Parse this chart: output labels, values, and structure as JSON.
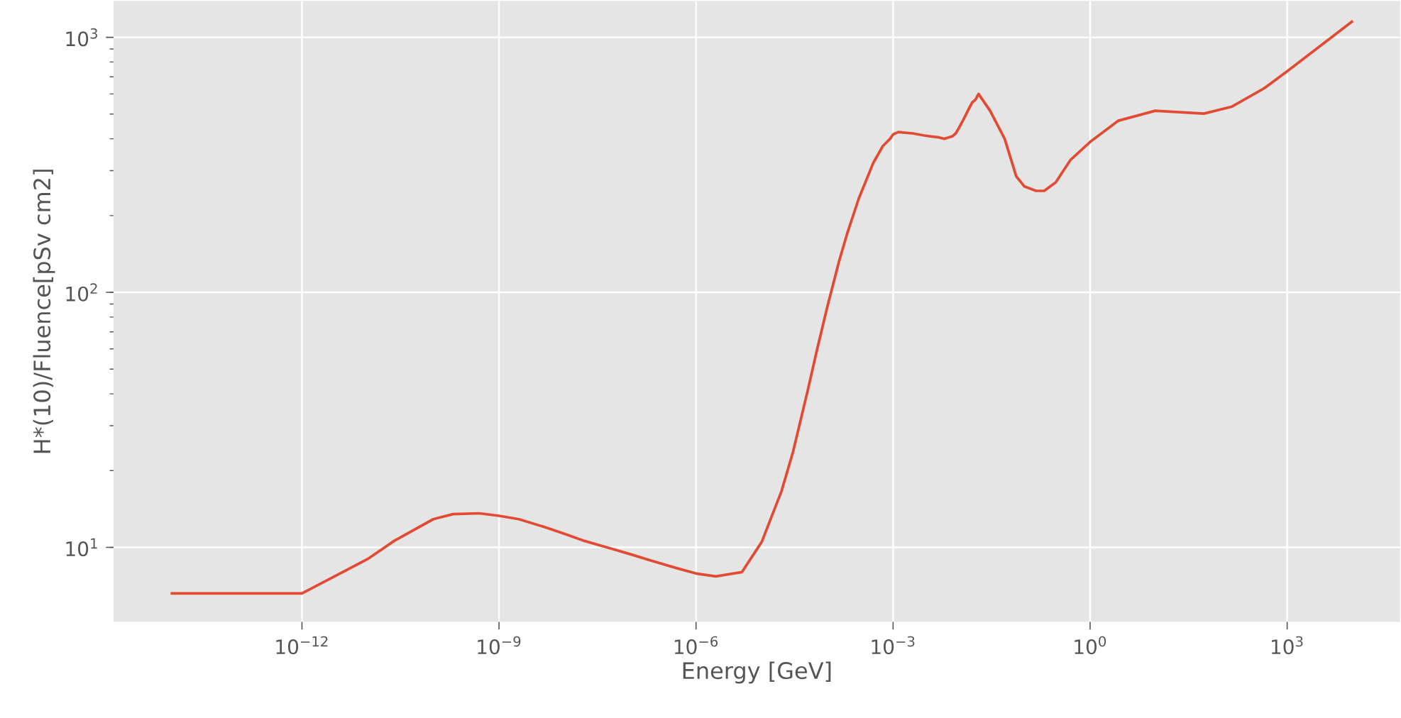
{
  "chart_data": {
    "type": "line",
    "xlabel": "Energy [GeV]",
    "ylabel": "H*(10)/Fluence[pSv cm2]",
    "log": "xy",
    "grid": true,
    "marker": "none",
    "line_style": "solid",
    "xlim": [
      1.35e-15,
      52500.0
    ],
    "ylim": [
      5.1,
      1390
    ],
    "xticks": [
      {
        "value": 1e-12,
        "label": "10$^{−12}$"
      },
      {
        "value": 1e-09,
        "label": "10$^{−9}$"
      },
      {
        "value": 1e-06,
        "label": "10$^{−6}$"
      },
      {
        "value": 0.001,
        "label": "10$^{−3}$"
      },
      {
        "value": 1,
        "label": "10$^{0}$"
      },
      {
        "value": 1000,
        "label": "10$^{3}$"
      }
    ],
    "yticks": [
      {
        "value": 10,
        "label": "10$^{1}$"
      },
      {
        "value": 100,
        "label": "10$^{2}$"
      },
      {
        "value": 1000,
        "label": "10$^{3}$"
      }
    ],
    "series": [
      {
        "color": "#e24a33",
        "x": [
          1e-14,
          1e-12,
          1e-11,
          2.53e-11,
          1e-10,
          2e-10,
          5e-10,
          1e-09,
          2e-09,
          5e-09,
          1e-08,
          2e-08,
          5e-08,
          1e-07,
          2e-07,
          5e-07,
          1e-06,
          2e-06,
          5e-06,
          1e-05,
          2e-05,
          3e-05,
          5e-05,
          7e-05,
          0.0001,
          0.00015,
          0.0002,
          0.0003,
          0.0005,
          0.0007,
          0.0009,
          0.001,
          0.0012,
          0.002,
          0.003,
          0.004,
          0.005,
          0.006,
          0.007,
          0.008,
          0.009,
          0.01,
          0.012,
          0.014,
          0.016,
          0.018,
          0.02,
          0.03,
          0.05,
          0.075,
          0.1,
          0.15,
          0.2,
          0.3,
          0.5,
          1,
          2.7,
          9.8,
          54,
          145,
          450,
          1000,
          10000.0
        ],
        "values": [
          6.6,
          6.6,
          9.0,
          10.6,
          12.9,
          13.5,
          13.6,
          13.3,
          12.9,
          12.0,
          11.3,
          10.6,
          9.9,
          9.4,
          8.9,
          8.3,
          7.9,
          7.7,
          8.0,
          10.5,
          16.6,
          23.7,
          41.1,
          60,
          88,
          132,
          170,
          233,
          322,
          375,
          400,
          416,
          425,
          420,
          412,
          408,
          405,
          400,
          405,
          409,
          420,
          440,
          480,
          520,
          555,
          570,
          600,
          515,
          400,
          285,
          260,
          250,
          250,
          270,
          330,
          389,
          471,
          515,
          502,
          535,
          632,
          736,
          1160
        ]
      }
    ]
  }
}
